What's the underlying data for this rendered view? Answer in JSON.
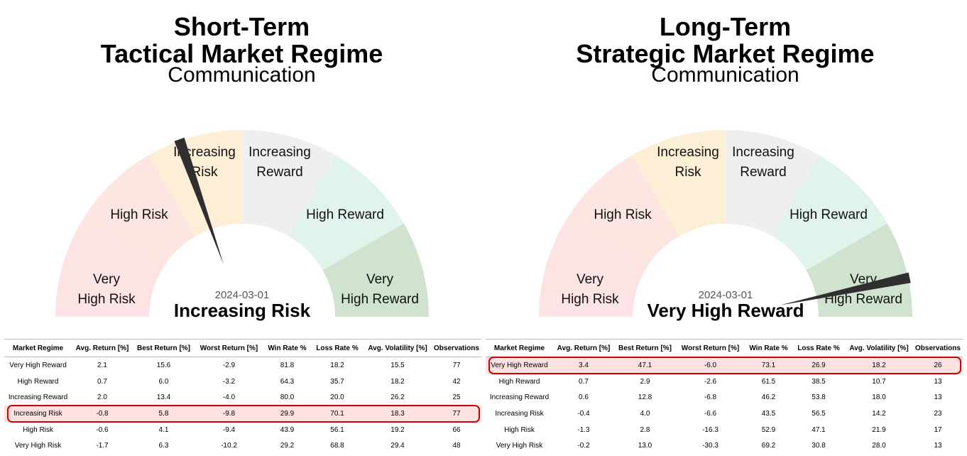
{
  "colors": {
    "very_high_risk": "#fde3e3",
    "high_risk": "#fde6e1",
    "increasing_risk": "#fdefd6",
    "increasing_reward": "#efefef",
    "high_reward": "#e1f4ec",
    "very_high_reward": "#cfe3cf",
    "needle": "#2f2f2f",
    "highlight_border": "#d00000",
    "highlight_fill": "#fde0e0"
  },
  "panels": [
    {
      "title_line1": "Short-Term",
      "title_line2": "Tactical Market Regime",
      "title_line3": "Communication",
      "date": "2024-03-01",
      "regime": "Increasing Risk",
      "needle_value": 2.35,
      "highlight_row": 3
    },
    {
      "title_line1": "Long-Term",
      "title_line2": "Strategic Market Regime",
      "title_line3": "Communication",
      "date": "2024-03-01",
      "regime": "Very High Reward",
      "needle_value": 5.6,
      "highlight_row": 0
    }
  ],
  "chart_data": [
    {
      "type": "gauge",
      "title": "Short-Term Tactical Market Regime Communication",
      "zones": [
        {
          "label": [
            "Very",
            "High Risk"
          ],
          "color_key": "very_high_risk"
        },
        {
          "label": [
            "High Risk"
          ],
          "color_key": "high_risk"
        },
        {
          "label": [
            "Increasing",
            "Risk"
          ],
          "color_key": "increasing_risk"
        },
        {
          "label": [
            "Increasing",
            "Reward"
          ],
          "color_key": "increasing_reward"
        },
        {
          "label": [
            "High Reward"
          ],
          "color_key": "high_reward"
        },
        {
          "label": [
            "Very",
            "High Reward"
          ],
          "color_key": "very_high_reward"
        }
      ],
      "current": "Increasing Risk",
      "date": "2024-03-01"
    },
    {
      "type": "table",
      "columns": [
        "Market Regime",
        "Avg. Return [%]",
        "Best Return [%]",
        "Worst Return [%]",
        "Win Rate %",
        "Loss Rate %",
        "Avg. Volatility [%]",
        "Observations"
      ],
      "rows": [
        [
          "Very High Reward",
          "2.1",
          "15.6",
          "-2.9",
          "81.8",
          "18.2",
          "15.5",
          "77"
        ],
        [
          "High Reward",
          "0.7",
          "6.0",
          "-3.2",
          "64.3",
          "35.7",
          "18.2",
          "42"
        ],
        [
          "Increasing Reward",
          "2.0",
          "13.4",
          "-4.0",
          "80.0",
          "20.0",
          "26.2",
          "25"
        ],
        [
          "Increasing Risk",
          "-0.8",
          "5.8",
          "-9.8",
          "29.9",
          "70.1",
          "18.3",
          "77"
        ],
        [
          "High Risk",
          "-0.6",
          "4.1",
          "-9.4",
          "43.9",
          "56.1",
          "19.2",
          "66"
        ],
        [
          "Very High Risk",
          "-1.7",
          "6.3",
          "-10.2",
          "29.2",
          "68.8",
          "29.4",
          "48"
        ]
      ]
    },
    {
      "type": "gauge",
      "title": "Long-Term Strategic Market Regime Communication",
      "zones": [
        {
          "label": [
            "Very",
            "High Risk"
          ],
          "color_key": "very_high_risk"
        },
        {
          "label": [
            "High Risk"
          ],
          "color_key": "high_risk"
        },
        {
          "label": [
            "Increasing",
            "Risk"
          ],
          "color_key": "increasing_risk"
        },
        {
          "label": [
            "Increasing",
            "Reward"
          ],
          "color_key": "increasing_reward"
        },
        {
          "label": [
            "High Reward"
          ],
          "color_key": "high_reward"
        },
        {
          "label": [
            "Very",
            "High Reward"
          ],
          "color_key": "very_high_reward"
        }
      ],
      "current": "Very High Reward",
      "date": "2024-03-01"
    },
    {
      "type": "table",
      "columns": [
        "Market Regime",
        "Avg. Return [%]",
        "Best Return [%]",
        "Worst Return [%]",
        "Win Rate %",
        "Loss Rate %",
        "Avg. Volatility [%]",
        "Observations"
      ],
      "rows": [
        [
          "Very High Reward",
          "3.4",
          "47.1",
          "-6.0",
          "73.1",
          "26.9",
          "18.2",
          "26"
        ],
        [
          "High Reward",
          "0.7",
          "2.9",
          "-2.6",
          "61.5",
          "38.5",
          "10.7",
          "13"
        ],
        [
          "Increasing Reward",
          "0.6",
          "12.8",
          "-6.8",
          "46.2",
          "53.8",
          "18.0",
          "13"
        ],
        [
          "Increasing Risk",
          "-0.4",
          "4.0",
          "-6.6",
          "43.5",
          "56.5",
          "14.2",
          "23"
        ],
        [
          "High Risk",
          "-1.3",
          "2.8",
          "-16.3",
          "52.9",
          "47.1",
          "21.9",
          "17"
        ],
        [
          "Very High Risk",
          "-0.2",
          "13.0",
          "-30.3",
          "69.2",
          "30.8",
          "28.0",
          "13"
        ]
      ]
    }
  ]
}
